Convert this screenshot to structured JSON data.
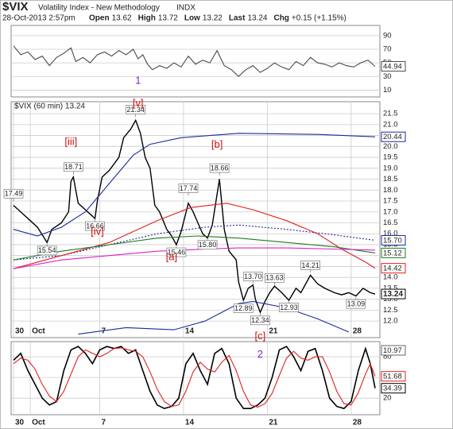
{
  "header": {
    "symbol": "$VIX",
    "name": "Volatility Index - New Methodology",
    "exchange": "INDX",
    "date": "28-Oct-2013 2:57pm",
    "items": [
      {
        "label": "Open",
        "value": 13.62
      },
      {
        "label": "High",
        "value": 13.72
      },
      {
        "label": "Low",
        "value": 13.22
      },
      {
        "label": "Last",
        "value": 13.24
      },
      {
        "label": "Chg",
        "value": "+0.15 (+1.15%)"
      }
    ]
  },
  "chart_data": [
    {
      "type": "line",
      "xlim": [
        -2,
        152
      ],
      "ylim": [
        0,
        105
      ],
      "yticks": [
        10,
        30,
        50,
        70,
        90
      ],
      "grid": true,
      "series": [
        {
          "color": "#4a4a4a",
          "x": [
            -1,
            2,
            5,
            8,
            11,
            14,
            17,
            20,
            23,
            25,
            28,
            31,
            34,
            37,
            40,
            43,
            46,
            49,
            51,
            53,
            55,
            57,
            60,
            63,
            66,
            69,
            72,
            75,
            78,
            81,
            84,
            87,
            90,
            93,
            96,
            99,
            102,
            105,
            108,
            111,
            114,
            117,
            120,
            123,
            126,
            129,
            132,
            135,
            138,
            141,
            144,
            147,
            150
          ],
          "values": [
            75,
            62,
            66,
            55,
            60,
            46,
            58,
            64,
            72,
            52,
            58,
            50,
            62,
            66,
            60,
            68,
            62,
            70,
            56,
            62,
            48,
            40,
            46,
            42,
            50,
            44,
            60,
            48,
            54,
            50,
            68,
            46,
            40,
            30,
            40,
            46,
            36,
            42,
            50,
            44,
            40,
            52,
            46,
            58,
            50,
            48,
            44,
            50,
            46,
            44,
            50,
            54,
            44.94
          ]
        }
      ],
      "annotations": [
        {
          "label": "1",
          "x": 51,
          "y": 23,
          "color": "#8b1fc9"
        }
      ]
    },
    {
      "type": "line",
      "legend": "$VIX (60 min) 13.24",
      "xlim": [
        -2,
        152
      ],
      "ylim": [
        11.24,
        22.05
      ],
      "grid": true,
      "xlabels": "inside",
      "yticks": [
        {
          "value": 12.0,
          "label": "12.0"
        },
        12.5,
        {
          "value": 13.0,
          "label": "13.0"
        },
        13.5,
        {
          "value": 14.0,
          "label": "14.0"
        },
        14.5,
        {
          "value": 15.0,
          "label": "15.0"
        },
        15.5,
        {
          "value": 16.0,
          "label": "16.0"
        },
        16.5,
        {
          "value": 17.0,
          "label": "17.0"
        },
        17.5,
        {
          "value": 18.0,
          "label": "18.0"
        },
        18.5,
        {
          "value": 19.0,
          "label": "19.0"
        },
        19.5,
        {
          "value": 20.0,
          "label": "20.0"
        },
        20.5,
        {
          "value": 21.0,
          "label": "21.0"
        },
        21.5
      ],
      "xticks": [
        {
          "value": -1,
          "label": "30"
        },
        {
          "value": 6,
          "label": "Oct"
        },
        {
          "value": 35,
          "label": "7"
        },
        {
          "value": 70,
          "label": "14"
        },
        {
          "value": 105,
          "label": "21"
        },
        {
          "value": 140,
          "label": "28"
        }
      ],
      "series": [
        {
          "color": "#000000",
          "width": 1.4,
          "x": [
            -1,
            3,
            6,
            9,
            13,
            15,
            19,
            22,
            23,
            24,
            26,
            29,
            32,
            33,
            34,
            36,
            39,
            43,
            45,
            48,
            50,
            52,
            54,
            56,
            58,
            60,
            63,
            65,
            67,
            69,
            72,
            74,
            76,
            78,
            80,
            82,
            85,
            87,
            89,
            92,
            93,
            95,
            97,
            99,
            100,
            102,
            104,
            106,
            108,
            111,
            114,
            117,
            119,
            123,
            126,
            129,
            133,
            136,
            139,
            142,
            145,
            148,
            150
          ],
          "values": [
            17.3,
            16.9,
            16.6,
            16.3,
            15.6,
            16.2,
            16.5,
            17.0,
            18.4,
            18.6,
            17.4,
            17.1,
            16.8,
            16.7,
            17.5,
            18.6,
            18.9,
            19.5,
            20.4,
            20.8,
            21.2,
            20.6,
            19.5,
            19.0,
            17.3,
            17.0,
            16.2,
            15.9,
            15.5,
            16.1,
            17.4,
            17.0,
            16.5,
            16.0,
            15.8,
            16.4,
            18.5,
            16.2,
            15.2,
            14.8,
            13.8,
            12.95,
            13.5,
            13.65,
            13.0,
            12.4,
            12.9,
            13.3,
            13.6,
            13.3,
            12.95,
            13.5,
            13.3,
            14.1,
            13.7,
            13.5,
            13.3,
            13.2,
            13.3,
            13.15,
            13.5,
            13.3,
            13.24
          ]
        },
        {
          "color": "#1a2a9c",
          "x": [
            -1,
            9,
            19,
            29,
            39,
            49,
            56,
            69,
            93,
            126,
            150
          ],
          "values": [
            16.2,
            15.9,
            16.3,
            17.0,
            18.3,
            19.6,
            20.1,
            20.4,
            20.6,
            20.55,
            20.44
          ]
        },
        {
          "color": "#1a2a9c",
          "tag": false,
          "x": [
            26,
            46,
            66,
            79,
            93,
            99,
            113,
            126,
            139
          ],
          "values": [
            11.4,
            11.7,
            11.6,
            12.0,
            12.8,
            12.9,
            12.6,
            12.1,
            11.5
          ]
        },
        {
          "color": "#1a2a9c",
          "dash": "dotted",
          "last_label": "15.70",
          "x": [
            -1,
            19,
            39,
            59,
            79,
            93,
            113,
            133,
            150
          ],
          "values": [
            14.8,
            15.0,
            15.5,
            16.0,
            16.3,
            16.4,
            16.2,
            15.95,
            15.7
          ]
        },
        {
          "color": "#e02020",
          "x": [
            -1,
            19,
            39,
            59,
            73,
            88,
            99,
            113,
            126,
            136,
            146,
            150
          ],
          "values": [
            14.4,
            15.0,
            15.6,
            16.6,
            17.2,
            17.4,
            17.1,
            16.6,
            16.0,
            15.3,
            14.7,
            14.42
          ]
        },
        {
          "color": "#1e7a1e",
          "x": [
            -1,
            19,
            39,
            59,
            76,
            93,
            113,
            133,
            150
          ],
          "values": [
            14.8,
            15.2,
            15.5,
            15.8,
            15.9,
            15.8,
            15.6,
            15.4,
            15.12
          ]
        },
        {
          "color": "#e020c8",
          "tag": false,
          "x": [
            -1,
            19,
            39,
            59,
            79,
            93,
            113,
            133,
            150
          ],
          "values": [
            14.4,
            14.8,
            15.0,
            15.2,
            15.3,
            15.35,
            15.35,
            15.3,
            15.25
          ]
        }
      ],
      "annotations": [
        {
          "label": "17.49",
          "x": -1,
          "y": 17.49,
          "position": "above",
          "box": true
        },
        {
          "label": "15.54",
          "x": 13,
          "y": 15.54,
          "position": "below",
          "box": true
        },
        {
          "label": "18.71",
          "x": 24,
          "y": 18.71,
          "position": "above",
          "box": true
        },
        {
          "label": "16.66",
          "x": 33,
          "y": 16.66,
          "position": "below",
          "box": true
        },
        {
          "label": "21.34",
          "x": 50,
          "y": 21.34,
          "position": "above",
          "box": true
        },
        {
          "label": "17.74",
          "x": 72,
          "y": 17.74,
          "position": "above",
          "box": true
        },
        {
          "label": "15.46",
          "x": 67,
          "y": 15.46,
          "position": "below",
          "box": true
        },
        {
          "label": "15.80",
          "x": 80,
          "y": 15.8,
          "position": "below",
          "box": true
        },
        {
          "label": "18.66",
          "x": 85,
          "y": 18.66,
          "position": "above",
          "box": true
        },
        {
          "label": "13.70",
          "x": 99,
          "y": 13.7,
          "position": "above",
          "box": true
        },
        {
          "label": "12.89",
          "x": 95,
          "y": 12.89,
          "position": "below",
          "box": true
        },
        {
          "label": "12.34",
          "x": 102,
          "y": 12.34,
          "position": "below",
          "box": true
        },
        {
          "label": "13.63",
          "x": 108,
          "y": 13.63,
          "position": "above",
          "box": true
        },
        {
          "label": "12.93",
          "x": 114,
          "y": 12.93,
          "position": "below",
          "box": true
        },
        {
          "label": "14.21",
          "x": 123,
          "y": 14.21,
          "position": "above",
          "box": true
        },
        {
          "label": "13.09",
          "x": 142,
          "y": 13.09,
          "position": "below",
          "box": true
        },
        {
          "label": "[v]",
          "x": 51,
          "y": 21.95,
          "color": "#d01010"
        },
        {
          "label": "[iii]",
          "x": 23,
          "y": 20.2,
          "color": "#d01010"
        },
        {
          "label": "[iv]",
          "x": 34,
          "y": 16.07,
          "color": "#d01010"
        },
        {
          "label": "[b]",
          "x": 84,
          "y": 20.07,
          "color": "#d01010"
        },
        {
          "label": "[a]",
          "x": 65,
          "y": 14.91,
          "color": "#d01010"
        },
        {
          "label": "[c]",
          "x": 102,
          "y": 11.3,
          "color": "#d01010"
        }
      ]
    },
    {
      "type": "line",
      "xlim": [
        -2,
        152
      ],
      "ylim": [
        -4,
        102
      ],
      "yticks": [
        20,
        50,
        80
      ],
      "grid": true,
      "xlabels": "below",
      "top_tag": "10.97",
      "xticks": [
        {
          "value": -1,
          "label": "30"
        },
        {
          "value": 6,
          "label": "Oct"
        },
        {
          "value": 35,
          "label": "7"
        },
        {
          "value": 70,
          "label": "14"
        },
        {
          "value": 105,
          "label": "21"
        },
        {
          "value": 140,
          "label": "28"
        }
      ],
      "series": [
        {
          "color": "#000000",
          "width": 1.6,
          "x": [
            -1,
            2,
            5,
            8,
            11,
            14,
            17,
            20,
            23,
            26,
            29,
            32,
            35,
            38,
            41,
            44,
            47,
            50,
            53,
            56,
            59,
            62,
            65,
            68,
            71,
            74,
            77,
            80,
            83,
            86,
            89,
            92,
            95,
            98,
            101,
            104,
            107,
            110,
            113,
            116,
            119,
            122,
            125,
            128,
            131,
            134,
            137,
            140,
            143,
            146,
            148,
            150
          ],
          "values": [
            75,
            85,
            60,
            40,
            20,
            10,
            15,
            60,
            90,
            95,
            85,
            70,
            90,
            95,
            92,
            95,
            85,
            90,
            60,
            30,
            10,
            5,
            8,
            20,
            70,
            85,
            60,
            40,
            85,
            92,
            70,
            20,
            5,
            5,
            10,
            20,
            50,
            90,
            95,
            80,
            60,
            88,
            92,
            60,
            20,
            8,
            5,
            15,
            60,
            92,
            70,
            34.39
          ]
        },
        {
          "color": "#e02020",
          "x": [
            -1,
            2,
            5,
            8,
            11,
            14,
            17,
            20,
            23,
            26,
            29,
            32,
            35,
            38,
            41,
            44,
            47,
            50,
            53,
            56,
            59,
            62,
            65,
            68,
            71,
            74,
            77,
            80,
            83,
            86,
            89,
            92,
            95,
            98,
            101,
            104,
            107,
            110,
            113,
            116,
            119,
            122,
            125,
            128,
            131,
            134,
            137,
            140,
            143,
            146,
            148,
            150
          ],
          "values": [
            70,
            78,
            75,
            62,
            40,
            23,
            15,
            30,
            55,
            80,
            90,
            85,
            80,
            85,
            92,
            93,
            90,
            88,
            80,
            58,
            33,
            15,
            8,
            10,
            30,
            58,
            72,
            62,
            58,
            72,
            82,
            60,
            30,
            10,
            7,
            12,
            27,
            53,
            78,
            88,
            78,
            75,
            80,
            80,
            58,
            30,
            12,
            10,
            28,
            55,
            70,
            51.68
          ]
        }
      ],
      "annotations": [
        {
          "label": "2",
          "x": 102,
          "y": 83,
          "color": "#8b1fc9"
        }
      ]
    }
  ]
}
